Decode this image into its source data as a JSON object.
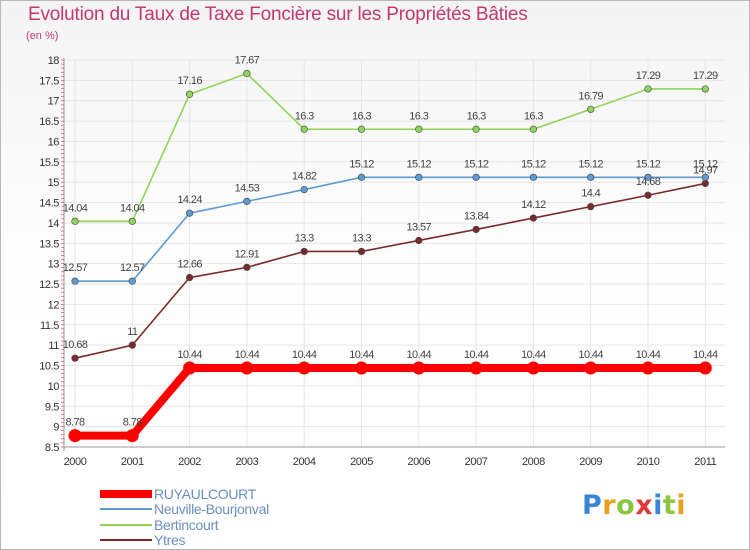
{
  "title": "Evolution du Taux de Taxe Foncière sur les Propriétés Bâties",
  "subtitle": "(en %)",
  "logo": {
    "text": "Proxiti",
    "letter_colors": [
      "#3a86d6",
      "#e8a020",
      "#8cc63f",
      "#e03a3a",
      "#3a86d6",
      "#8cc63f",
      "#e8a020"
    ]
  },
  "chart_data": {
    "type": "line",
    "title": "Evolution du Taux de Taxe Foncière sur les Propriétés Bâties",
    "ylabel": "(en %)",
    "xlabel": "",
    "categories": [
      "2000",
      "2001",
      "2002",
      "2003",
      "2004",
      "2005",
      "2006",
      "2007",
      "2008",
      "2009",
      "2010",
      "2011"
    ],
    "ylim": [
      8.5,
      18
    ],
    "yticks": [
      "8.5",
      "9",
      "9.5",
      "10",
      "10.5",
      "11",
      "11.5",
      "12",
      "12.5",
      "13",
      "13.5",
      "14",
      "14.5",
      "15",
      "15.5",
      "16",
      "16.5",
      "17",
      "17.5",
      "18"
    ],
    "grid": true,
    "legend_position": "bottom-left",
    "series": [
      {
        "name": "RUYAULCOURT",
        "color": "#ff0000",
        "values": [
          8.78,
          8.78,
          10.44,
          10.44,
          10.44,
          10.44,
          10.44,
          10.44,
          10.44,
          10.44,
          10.44,
          10.44
        ],
        "labels": [
          "8.78",
          "8.78",
          "10.44",
          "10.44",
          "10.44",
          "10.44",
          "10.44",
          "10.44",
          "10.44",
          "10.44",
          "10.44",
          "10.44"
        ]
      },
      {
        "name": "Neuville-Bourjonval",
        "color": "#5e9bd2",
        "values": [
          12.57,
          12.57,
          14.24,
          14.53,
          14.82,
          15.12,
          15.12,
          15.12,
          15.12,
          15.12,
          15.12,
          15.12
        ],
        "labels": [
          "12.57",
          "12.57",
          "14.24",
          "14.53",
          "14.82",
          "15.12",
          "15.12",
          "15.12",
          "15.12",
          "15.12",
          "15.12",
          "15.12"
        ]
      },
      {
        "name": "Bertincourt",
        "color": "#90d45a",
        "values": [
          14.04,
          14.04,
          17.16,
          17.67,
          16.3,
          16.3,
          16.3,
          16.3,
          16.3,
          16.79,
          17.29,
          17.29
        ],
        "labels": [
          "14.04",
          "14.04",
          "17.16",
          "17.67",
          "16.3",
          "16.3",
          "16.3",
          "16.3",
          "16.3",
          "16.79",
          "17.29",
          "17.29"
        ]
      },
      {
        "name": "Ytres",
        "color": "#7a2a2a",
        "values": [
          10.68,
          11,
          12.66,
          12.91,
          13.3,
          13.3,
          13.57,
          13.84,
          14.12,
          14.4,
          14.68,
          14.97
        ],
        "labels": [
          "10.68",
          "11",
          "12.66",
          "12.91",
          "13.3",
          "13.3",
          "13.57",
          "13.84",
          "14.12",
          "14.4",
          "14.68",
          "14.97"
        ]
      }
    ]
  }
}
